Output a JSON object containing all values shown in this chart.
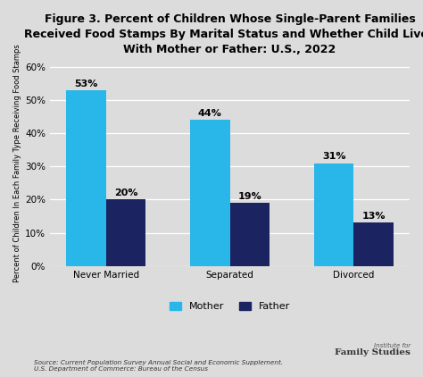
{
  "title": "Figure 3. Percent of Children Whose Single-Parent Families\nReceived Food Stamps By Marital Status and Whether Child Lived\nWith Mother or Father: U.S., 2022",
  "categories": [
    "Never Married",
    "Separated",
    "Divorced"
  ],
  "mother_values": [
    53,
    44,
    31
  ],
  "father_values": [
    20,
    19,
    13
  ],
  "mother_color": "#29B6E8",
  "father_color": "#1B2461",
  "ylabel": "Percent of Children In Each Family Type Receiving Food Stamps",
  "ylim": [
    0,
    62
  ],
  "yticks": [
    0,
    10,
    20,
    30,
    40,
    50,
    60
  ],
  "ytick_labels": [
    "0%",
    "10%",
    "20%",
    "30%",
    "40%",
    "50%",
    "60%"
  ],
  "background_color": "#DCDCDC",
  "source_text": "Source: Current Population Survey Annual Social and Economic Supplement.\nU.S. Department of Commerce: Bureau of the Census",
  "legend_labels": [
    "Mother",
    "Father"
  ],
  "bar_width": 0.32,
  "title_fontsize": 9.0,
  "label_fontsize": 8,
  "tick_fontsize": 7.5,
  "annotation_fontsize": 8,
  "ylabel_fontsize": 6.0
}
